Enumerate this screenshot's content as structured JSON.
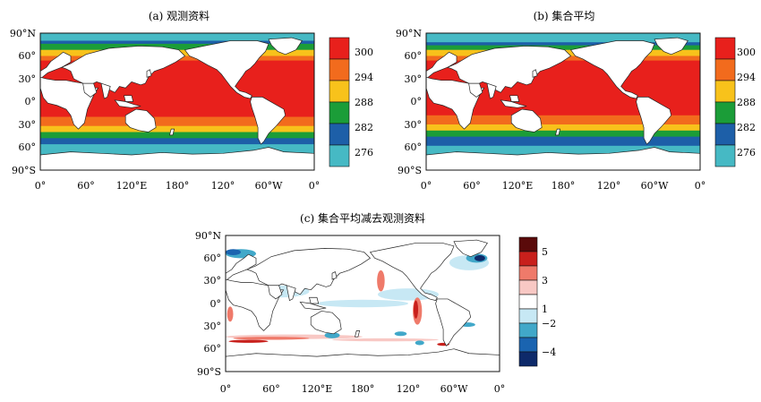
{
  "panels": [
    {
      "id": "a",
      "title": "(a) 观测资料"
    },
    {
      "id": "b",
      "title": "(b) 集合平均"
    },
    {
      "id": "c",
      "title": "(c) 集合平均减去观测资料"
    }
  ],
  "lat_ticks": [
    "90°N",
    "60°",
    "30°",
    "0°",
    "30°",
    "60°",
    "90°S"
  ],
  "lon_ticks": [
    "0°",
    "60°",
    "120°E",
    "180°",
    "120°",
    "60°W",
    "0°"
  ],
  "colorbar_sst": {
    "labels": [
      "300",
      "294",
      "288",
      "282",
      "276"
    ],
    "colors": [
      "#e8201c",
      "#f26b1d",
      "#f8c21b",
      "#1b9d38",
      "#1d5fa8",
      "#46b9c4"
    ]
  },
  "colorbar_diff": {
    "labels": [
      "5",
      "3",
      "1",
      "−2",
      "−4"
    ],
    "colors": [
      "#5a0a0a",
      "#c8201c",
      "#ef7a6a",
      "#f8c8c4",
      "#ffffff",
      "#c7e8f4",
      "#41a8c9",
      "#1a64b0",
      "#0e2a6a"
    ]
  },
  "colors": {
    "land": "#ffffff",
    "coast": "#222222",
    "frame": "#111111",
    "warm": "#e8201c",
    "orange": "#f26b1d",
    "yellow": "#f8c21b",
    "green": "#1b9d38",
    "blue": "#1d5fa8",
    "cyan": "#46b9c4"
  }
}
